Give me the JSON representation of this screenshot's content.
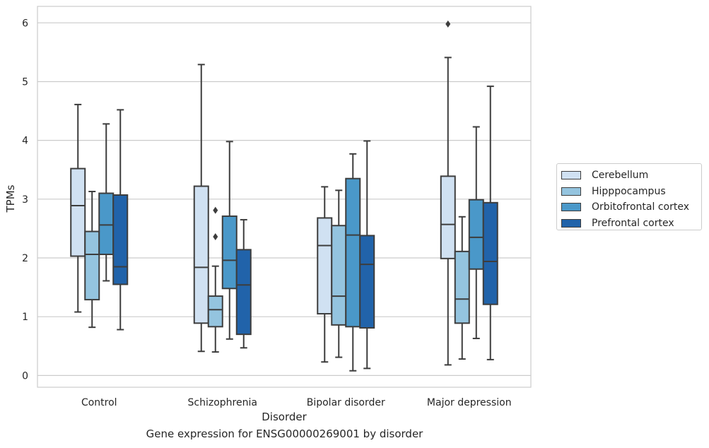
{
  "caption": "Gene expression for ENSG00000269001 by disorder",
  "chart_data": {
    "type": "box",
    "title": "",
    "xlabel": "Disorder",
    "ylabel": "TPMs",
    "categories": [
      "Control",
      "Schizophrenia",
      "Bipolar disorder",
      "Major depression"
    ],
    "ylim": [
      -0.2,
      6.28
    ],
    "yticks": [
      0,
      1,
      2,
      3,
      4,
      5,
      6
    ],
    "grid": "horizontal",
    "legend_position": "right",
    "series": [
      {
        "name": "Cerebellum",
        "color": "#d0e1f2",
        "boxes": [
          {
            "whisker_low": 1.08,
            "q1": 2.03,
            "median": 2.89,
            "q3": 3.52,
            "whisker_high": 4.61,
            "outliers": []
          },
          {
            "whisker_low": 0.41,
            "q1": 0.89,
            "median": 1.84,
            "q3": 3.22,
            "whisker_high": 5.29,
            "outliers": []
          },
          {
            "whisker_low": 0.23,
            "q1": 1.05,
            "median": 2.21,
            "q3": 2.68,
            "whisker_high": 3.21,
            "outliers": []
          },
          {
            "whisker_low": 0.18,
            "q1": 1.99,
            "median": 2.57,
            "q3": 3.39,
            "whisker_high": 5.41,
            "outliers": [
              5.98
            ]
          }
        ]
      },
      {
        "name": "Hipppocampus",
        "color": "#94c4df",
        "boxes": [
          {
            "whisker_low": 0.82,
            "q1": 1.29,
            "median": 2.06,
            "q3": 2.45,
            "whisker_high": 3.13,
            "outliers": []
          },
          {
            "whisker_low": 0.4,
            "q1": 0.83,
            "median": 1.12,
            "q3": 1.35,
            "whisker_high": 1.86,
            "outliers": [
              2.81,
              2.36
            ]
          },
          {
            "whisker_low": 0.31,
            "q1": 0.86,
            "median": 1.35,
            "q3": 2.55,
            "whisker_high": 3.15,
            "outliers": []
          },
          {
            "whisker_low": 0.28,
            "q1": 0.89,
            "median": 1.3,
            "q3": 2.11,
            "whisker_high": 2.7,
            "outliers": []
          }
        ]
      },
      {
        "name": "Orbitofrontal cortex",
        "color": "#4a98c9",
        "boxes": [
          {
            "whisker_low": 1.61,
            "q1": 2.06,
            "median": 2.56,
            "q3": 3.1,
            "whisker_high": 4.28,
            "outliers": []
          },
          {
            "whisker_low": 0.62,
            "q1": 1.48,
            "median": 1.96,
            "q3": 2.71,
            "whisker_high": 3.98,
            "outliers": []
          },
          {
            "whisker_low": 0.08,
            "q1": 0.83,
            "median": 2.39,
            "q3": 3.35,
            "whisker_high": 3.77,
            "outliers": []
          },
          {
            "whisker_low": 0.63,
            "q1": 1.81,
            "median": 2.35,
            "q3": 2.99,
            "whisker_high": 4.23,
            "outliers": []
          }
        ]
      },
      {
        "name": "Prefrontal cortex",
        "color": "#2163aa",
        "boxes": [
          {
            "whisker_low": 0.78,
            "q1": 1.55,
            "median": 1.85,
            "q3": 3.07,
            "whisker_high": 4.52,
            "outliers": []
          },
          {
            "whisker_low": 0.47,
            "q1": 0.7,
            "median": 1.54,
            "q3": 2.14,
            "whisker_high": 2.65,
            "outliers": []
          },
          {
            "whisker_low": 0.12,
            "q1": 0.81,
            "median": 1.89,
            "q3": 2.38,
            "whisker_high": 3.99,
            "outliers": []
          },
          {
            "whisker_low": 0.27,
            "q1": 1.21,
            "median": 1.94,
            "q3": 2.94,
            "whisker_high": 4.92,
            "outliers": []
          }
        ]
      }
    ]
  }
}
